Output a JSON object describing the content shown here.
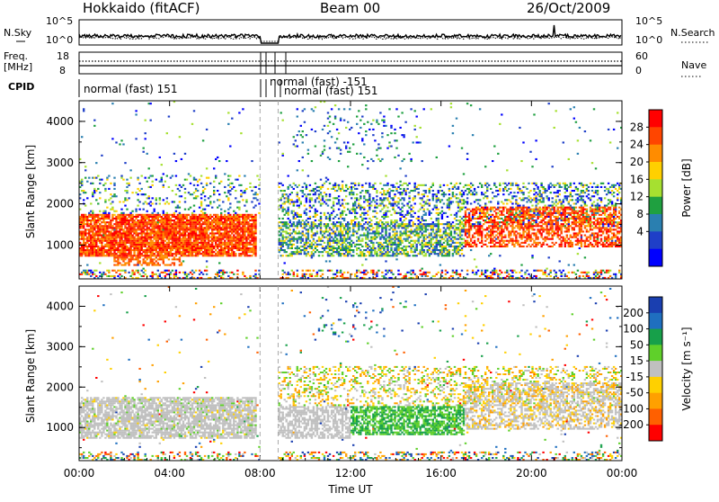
{
  "header": {
    "station": "Hokkaido (fitACF)",
    "beam": "Beam 00",
    "date": "26/Oct/2009"
  },
  "top_panels": {
    "nsky_label": "N.Sky",
    "nsky_ticks": [
      "10^5",
      "10^0"
    ],
    "nsearch_ticks": [
      "10^5",
      "10^0"
    ],
    "nsearch_label": "N.Search",
    "freq_label_1": "Freq.",
    "freq_label_2": "[MHz]",
    "freq_ticks": [
      "18",
      "8"
    ],
    "nave_ticks": [
      "60",
      "0"
    ],
    "nave_label": "Nave",
    "cpid_label": "CPID",
    "cpid_segments": [
      {
        "text": "normal (fast) 151"
      },
      {
        "text": "normal (fast) -151"
      },
      {
        "text": "normal (fast) 151"
      }
    ]
  },
  "chart_data": [
    {
      "type": "heatmap",
      "name": "power",
      "ylabel": "Slant Range [km]",
      "yticks": [
        "4000",
        "3000",
        "2000",
        "1000"
      ],
      "ylim": [
        180,
        4500
      ],
      "colorbar": {
        "label": "Power [dB]",
        "ticks": [
          "28",
          "24",
          "20",
          "16",
          "12",
          "8",
          "4"
        ],
        "colors": [
          "#ff0000",
          "#ff4500",
          "#ff8c00",
          "#ffd000",
          "#a6e030",
          "#1fa040",
          "#2a7fb0",
          "#1f3fc8",
          "#0000ff"
        ]
      }
    },
    {
      "type": "heatmap",
      "name": "velocity",
      "ylabel": "Slant Range [km]",
      "yticks": [
        "4000",
        "3000",
        "2000",
        "1000"
      ],
      "ylim": [
        180,
        4500
      ],
      "colorbar": {
        "label": "Velocity [m s⁻¹]",
        "ticks": [
          "200",
          "100",
          "50",
          "15",
          "-15",
          "-50",
          "-100",
          "-200"
        ],
        "colors": [
          "#1a3fb0",
          "#1f6fc0",
          "#17a04a",
          "#5fd02a",
          "#c0c0c0",
          "#ffd000",
          "#ffa000",
          "#ff6000",
          "#ff0000"
        ]
      },
      "xlabel": "Time UT",
      "xticks": [
        "00:00",
        "04:00",
        "08:00",
        "12:00",
        "16:00",
        "20:00",
        "00:00"
      ],
      "xlim": [
        0,
        24
      ]
    }
  ]
}
